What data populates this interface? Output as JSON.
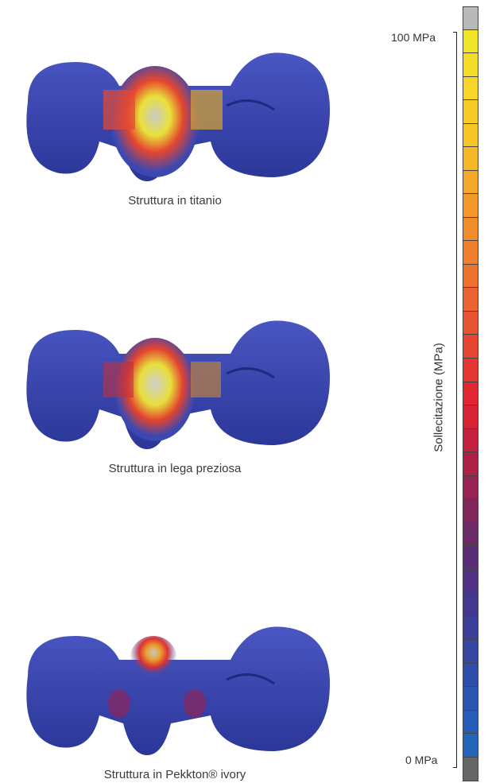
{
  "panels": [
    {
      "caption": "Struttura in titanio"
    },
    {
      "caption": "Struttura in lega preziosa"
    },
    {
      "caption": "Struttura in Pekkton® ivory"
    }
  ],
  "scale": {
    "axis_label": "Sollecitazione (MPa)",
    "max_label": "100 MPa",
    "min_label": "0 MPa",
    "max_value": 100,
    "min_value": 0,
    "colors": [
      "#b7b9bb",
      "#f1e52a",
      "#f4dd28",
      "#f6d626",
      "#f7cd25",
      "#f7c526",
      "#f6b826",
      "#f4a828",
      "#f39a2a",
      "#f18d2b",
      "#ef7f2d",
      "#ed722e",
      "#ea6330",
      "#e85431",
      "#e64532",
      "#e43633",
      "#e22733",
      "#d72336",
      "#c3213f",
      "#ad2147",
      "#962350",
      "#7e2758",
      "#6a2b66",
      "#5b2d76",
      "#4f3285",
      "#433890",
      "#3b3f9a",
      "#3546a3",
      "#2f4dab",
      "#2a55b1",
      "#255db6",
      "#2265b9",
      "#656767"
    ]
  },
  "icons": [
    "bridge-titanium-image",
    "bridge-precious-alloy-image",
    "bridge-pekkton-image"
  ]
}
